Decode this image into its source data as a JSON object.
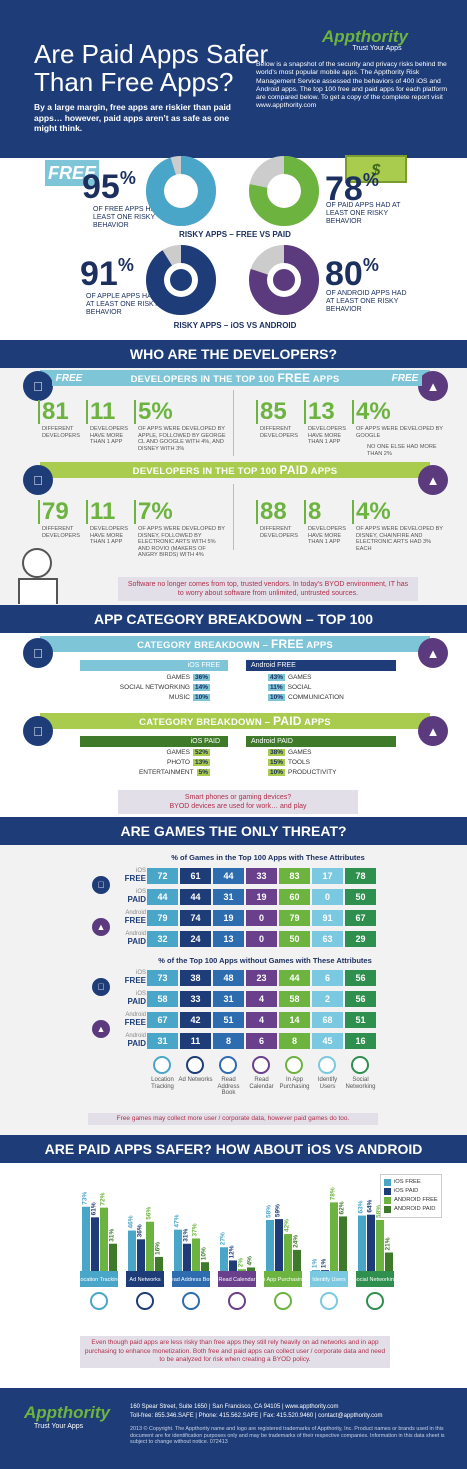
{
  "header": {
    "title_line1": "Are Paid Apps Safer",
    "title_line2": "Than Free Apps?",
    "subtitle": "By a large margin, free apps are riskier than paid apps… however, paid apps aren’t as safe as one might think.",
    "intro": "Below is a snapshot of the security and privacy risks behind the world’s most popular mobile apps. The Appthority Risk Management Service assessed the behaviors of 400 iOS and Android apps. The top 100 free and paid apps for each platform are compared below. To get a copy of the complete report visit www.appthority.com",
    "logo_text": "Appthority",
    "logo_tagline": "Trust Your Apps"
  },
  "top_stats": {
    "free": {
      "tag": "FREE",
      "pct": "95",
      "sign": "%",
      "caption": "OF FREE APPS HAD AT LEAST ONE RISKY BEHAVIOR",
      "value": 95
    },
    "paid": {
      "tag": "$",
      "pct": "78",
      "sign": "%",
      "caption": "OF PAID APPS HAD AT LEAST ONE RISKY BEHAVIOR",
      "value": 78
    },
    "label_1": "RISKY APPS – FREE VS PAID",
    "apple": {
      "pct": "91",
      "sign": "%",
      "caption": "OF APPLE APPS HAD AT LEAST ONE RISKY BEHAVIOR",
      "value": 91
    },
    "android": {
      "pct": "80",
      "sign": "%",
      "caption": "OF ANDROID APPS HAD AT LEAST ONE RISKY BEHAVIOR",
      "value": 80
    },
    "label_2": "RISKY APPS – iOS VS ANDROID"
  },
  "developers": {
    "title": "WHO ARE THE DEVELOPERS?",
    "free_bar_pre": "DEVELOPERS IN THE TOP 100 ",
    "free_bar_bold": "FREE",
    "free_bar_post": " APPS",
    "paid_bar_pre": "DEVELOPERS IN THE TOP 100 ",
    "paid_bar_bold": "PAID",
    "paid_bar_post": " APPS",
    "free_tag": "FREE",
    "ios_free": [
      {
        "num": "81",
        "cap": "DIFFERENT DEVELOPERS"
      },
      {
        "num": "11",
        "cap": "DEVELOPERS HAVE MORE THAN 1 APP"
      },
      {
        "num": "5%",
        "cap": "OF APPS WERE DEVELOPED BY APPLE, FOLLOWED BY GEORGE CL AND GOOGLE WITH 4%, AND DISNEY WITH 3%"
      }
    ],
    "android_free": [
      {
        "num": "85",
        "cap": "DIFFERENT DEVELOPERS"
      },
      {
        "num": "13",
        "cap": "DEVELOPERS HAVE MORE THAN 1 APP"
      },
      {
        "num": "4%",
        "cap": "OF APPS WERE DEVELOPED BY GOOGLE"
      }
    ],
    "android_free_note": "NO ONE ELSE HAD MORE THAN 2%",
    "ios_paid": [
      {
        "num": "79",
        "cap": "DIFFERENT DEVELOPERS"
      },
      {
        "num": "11",
        "cap": "DEVELOPERS HAVE MORE THAN 1 APP"
      },
      {
        "num": "7%",
        "cap": "OF APPS WERE DEVELOPED BY DISNEY, FOLLOWED BY ELECTRONIC ARTS WITH 5% AND ROVIO (MAKERS OF ANGRY BIRDS) WITH 4%"
      }
    ],
    "android_paid": [
      {
        "num": "88",
        "cap": "DIFFERENT DEVELOPERS"
      },
      {
        "num": "8",
        "cap": "DEVELOPERS HAVE MORE THAN 1 APP"
      },
      {
        "num": "4%",
        "cap": "OF APPS WERE DEVELOPED BY DISNEY, CHAINFIRE AND ELECTRONIC ARTS HAD 3% EACH"
      }
    ],
    "note": "Software no longer comes from top, trusted vendors. In today’s BYOD environment, IT has to worry about software from unlimited, untrusted sources."
  },
  "categories": {
    "title": "APP CATEGORY BREAKDOWN – TOP 100",
    "free_bar_pre": "CATEGORY BREAKDOWN – ",
    "free_bar_bold": "FREE",
    "free_bar_post": " APPS",
    "paid_bar_pre": "CATEGORY BREAKDOWN – ",
    "paid_bar_bold": "PAID",
    "paid_bar_post": " APPS",
    "ios_free_label": "iOS FREE",
    "android_free_label": "Android FREE",
    "ios_paid_label": "iOS PAID",
    "android_paid_label": "Android PAID",
    "ios_free": [
      {
        "name": "GAMES",
        "pct": "36%",
        "v": 36
      },
      {
        "name": "SOCIAL NETWORKING",
        "pct": "14%",
        "v": 14
      },
      {
        "name": "MUSIC",
        "pct": "10%",
        "v": 10
      }
    ],
    "android_free": [
      {
        "name": "GAMES",
        "pct": "43%",
        "v": 43
      },
      {
        "name": "SOCIAL",
        "pct": "11%",
        "v": 11
      },
      {
        "name": "COMMUNICATION",
        "pct": "10%",
        "v": 10
      }
    ],
    "ios_paid": [
      {
        "name": "GAMES",
        "pct": "52%",
        "v": 52
      },
      {
        "name": "PHOTO",
        "pct": "13%",
        "v": 13
      },
      {
        "name": "ENTERTAINMENT",
        "pct": "5%",
        "v": 5
      }
    ],
    "android_paid": [
      {
        "name": "GAMES",
        "pct": "38%",
        "v": 38
      },
      {
        "name": "TOOLS",
        "pct": "15%",
        "v": 15
      },
      {
        "name": "PRODUCTIVITY",
        "pct": "10%",
        "v": 10
      }
    ],
    "note_line1": "Smart phones or gaming devices?",
    "note_line2": "BYOD devices are used for work… and play"
  },
  "games": {
    "title": "ARE GAMES THE ONLY THREAT?",
    "table1_title": "% of Games in the Top 100 Apps with These Attributes",
    "table2_title": "% of the Top 100 Apps without Games with These Attributes",
    "rows_with_games": [
      {
        "os": "iOS",
        "tier": "FREE",
        "vals": [
          "72",
          "61",
          "44",
          "33",
          "83",
          "17",
          "78"
        ]
      },
      {
        "os": "iOS",
        "tier": "PAID",
        "vals": [
          "44",
          "44",
          "31",
          "19",
          "60",
          "0",
          "50"
        ]
      },
      {
        "os": "Android",
        "tier": "FREE",
        "vals": [
          "79",
          "74",
          "19",
          "0",
          "79",
          "91",
          "67"
        ]
      },
      {
        "os": "Android",
        "tier": "PAID",
        "vals": [
          "32",
          "24",
          "13",
          "0",
          "50",
          "63",
          "29"
        ]
      }
    ],
    "rows_without_games": [
      {
        "os": "iOS",
        "tier": "FREE",
        "vals": [
          "73",
          "38",
          "48",
          "23",
          "44",
          "6",
          "56"
        ]
      },
      {
        "os": "iOS",
        "tier": "PAID",
        "vals": [
          "58",
          "33",
          "31",
          "4",
          "58",
          "2",
          "56"
        ]
      },
      {
        "os": "Android",
        "tier": "FREE",
        "vals": [
          "67",
          "42",
          "51",
          "4",
          "14",
          "68",
          "51"
        ]
      },
      {
        "os": "Android",
        "tier": "PAID",
        "vals": [
          "31",
          "11",
          "8",
          "6",
          "8",
          "45",
          "16"
        ]
      }
    ],
    "columns": [
      "Location Tracking",
      "Ad Networks",
      "Read Address Book",
      "Read Calendar",
      "In App Purchasing",
      "Identify Users",
      "Social Networking"
    ],
    "column_colors": [
      "#4aa6c8",
      "#1d3c78",
      "#2e6cb0",
      "#6a3f8c",
      "#6db33f",
      "#7bc9e0",
      "#2f8f4e"
    ],
    "note": "Free games may collect more user / corporate data, however paid games do too."
  },
  "chart_data": {
    "type": "bar",
    "title": "ARE PAID APPS SAFER? HOW ABOUT iOS VS ANDROID",
    "categories": [
      "Location Tracking",
      "Ad Networks",
      "Read Address Book",
      "Read Calendar",
      "In App Purchasing",
      "Identify Users",
      "Social Networking"
    ],
    "series": [
      {
        "name": "iOS FREE",
        "labels": [
          "73%",
          "46%",
          "47%",
          "27%",
          "58%",
          "1%",
          "63%"
        ],
        "values": [
          73,
          46,
          47,
          27,
          58,
          1,
          63
        ]
      },
      {
        "name": "iOS PAID",
        "labels": [
          "61%",
          "36%",
          "31%",
          "12%",
          "59%",
          "1%",
          "64%"
        ],
        "values": [
          61,
          36,
          31,
          12,
          59,
          1,
          64
        ]
      },
      {
        "name": "ANDROID FREE",
        "labels": [
          "72%",
          "56%",
          "37%",
          "2%",
          "42%",
          "78%",
          "58%"
        ],
        "values": [
          72,
          56,
          37,
          2,
          42,
          78,
          58
        ]
      },
      {
        "name": "ANDROID PAID",
        "labels": [
          "31%",
          "16%",
          "10%",
          "4%",
          "24%",
          "62%",
          "21%"
        ],
        "values": [
          31,
          16,
          10,
          4,
          24,
          62,
          21
        ]
      }
    ],
    "colors": [
      "#4aa6c8",
      "#1d3c78",
      "#6db33f",
      "#3f7a2a"
    ],
    "legend": "top-right",
    "note": "Even though paid apps are less risky than free apps they still rely heavily on ad networks and in app purchasing to enhance monetization. Both free and paid apps can collect user / corporate data and need to be analyzed for risk when creating a BYOD policy."
  },
  "footer": {
    "address": "160 Spear Street, Suite 1650  |  San Francisco, CA 94105  |  www.appthority.com",
    "phones": "Toll-free: 855.346.SAFE  |  Phone: 415.562.SAFE  |  Fax: 415.520.9460  |  contact@appthority.com",
    "legal": "2013 © Copyright. The Appthority name and logo are registered trademarks of Appthority, Inc. Product names or brands used in this document are for identification purposes only and may be trademarks of their respective companies. Information in this data sheet is subject to change without notice.  072413",
    "logo_text": "Appthority",
    "logo_tagline": "Trust Your Apps"
  }
}
